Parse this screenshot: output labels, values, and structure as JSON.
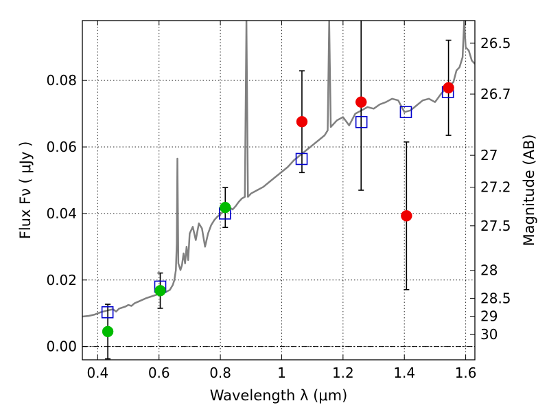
{
  "chart_data": {
    "type": "scatter",
    "title": "",
    "xlabel": "Wavelength  λ (μm)",
    "ylabel": "Flux  Fν  ( μJy )",
    "y2label": "Magnitude (AB)",
    "xlim": [
      0.35,
      1.63
    ],
    "ylim": [
      -0.004,
      0.098
    ],
    "grid": true,
    "x_ticks": [
      {
        "value": 0.4,
        "label": "0.4"
      },
      {
        "value": 0.6,
        "label": "0.6"
      },
      {
        "value": 0.8,
        "label": "0.8"
      },
      {
        "value": 1.0,
        "label": "1"
      },
      {
        "value": 1.2,
        "label": "1.2"
      },
      {
        "value": 1.4,
        "label": "1.4"
      },
      {
        "value": 1.6,
        "label": "1.6"
      }
    ],
    "y_ticks": [
      {
        "value": 0.0,
        "label": "0.00"
      },
      {
        "value": 0.02,
        "label": "0.02"
      },
      {
        "value": 0.04,
        "label": "0.04"
      },
      {
        "value": 0.06,
        "label": "0.06"
      },
      {
        "value": 0.08,
        "label": "0.08"
      }
    ],
    "y2_ticks": [
      {
        "label": "26.5",
        "flux": 0.0912
      },
      {
        "label": "26.7",
        "flux": 0.0759
      },
      {
        "label": "27",
        "flux": 0.0575
      },
      {
        "label": "27.2",
        "flux": 0.0479
      },
      {
        "label": "27.5",
        "flux": 0.0363
      },
      {
        "label": "28",
        "flux": 0.0229
      },
      {
        "label": "28.5",
        "flux": 0.0145
      },
      {
        "label": "29",
        "flux": 0.0091
      },
      {
        "label": "30",
        "flux": 0.0036
      }
    ],
    "colors": {
      "sed": "#808080",
      "model": "#0000cc",
      "optical": "#00bb00",
      "nir": "#ee0000",
      "error": "#000000",
      "refline": "#000000"
    },
    "series": [
      {
        "kind": "line",
        "points": [
          [
            0.35,
            0.009
          ],
          [
            0.37,
            0.0092
          ],
          [
            0.39,
            0.0096
          ],
          [
            0.41,
            0.0103
          ],
          [
            0.43,
            0.0108
          ],
          [
            0.45,
            0.0112
          ],
          [
            0.46,
            0.0105
          ],
          [
            0.47,
            0.0114
          ],
          [
            0.49,
            0.012
          ],
          [
            0.5,
            0.0125
          ],
          [
            0.51,
            0.0122
          ],
          [
            0.52,
            0.013
          ],
          [
            0.54,
            0.0138
          ],
          [
            0.56,
            0.0146
          ],
          [
            0.58,
            0.0152
          ],
          [
            0.6,
            0.0158
          ],
          [
            0.62,
            0.0163
          ],
          [
            0.635,
            0.017
          ],
          [
            0.645,
            0.0185
          ],
          [
            0.65,
            0.02
          ],
          [
            0.655,
            0.023
          ],
          [
            0.658,
            0.031
          ],
          [
            0.66,
            0.0565
          ],
          [
            0.663,
            0.025
          ],
          [
            0.67,
            0.023
          ],
          [
            0.675,
            0.0245
          ],
          [
            0.68,
            0.028
          ],
          [
            0.685,
            0.025
          ],
          [
            0.69,
            0.03
          ],
          [
            0.695,
            0.026
          ],
          [
            0.7,
            0.034
          ],
          [
            0.71,
            0.036
          ],
          [
            0.72,
            0.032
          ],
          [
            0.73,
            0.037
          ],
          [
            0.74,
            0.0355
          ],
          [
            0.75,
            0.03
          ],
          [
            0.76,
            0.034
          ],
          [
            0.77,
            0.0365
          ],
          [
            0.78,
            0.038
          ],
          [
            0.79,
            0.039
          ],
          [
            0.8,
            0.0398
          ],
          [
            0.81,
            0.0405
          ],
          [
            0.82,
            0.041
          ],
          [
            0.83,
            0.0418
          ],
          [
            0.84,
            0.0412
          ],
          [
            0.85,
            0.0422
          ],
          [
            0.86,
            0.0435
          ],
          [
            0.87,
            0.0445
          ],
          [
            0.88,
            0.045
          ],
          [
            0.885,
            0.098
          ],
          [
            0.89,
            0.045
          ],
          [
            0.9,
            0.046
          ],
          [
            0.92,
            0.047
          ],
          [
            0.94,
            0.048
          ],
          [
            0.96,
            0.0495
          ],
          [
            0.98,
            0.051
          ],
          [
            1.0,
            0.0525
          ],
          [
            1.02,
            0.054
          ],
          [
            1.04,
            0.056
          ],
          [
            1.06,
            0.0575
          ],
          [
            1.08,
            0.059
          ],
          [
            1.1,
            0.0605
          ],
          [
            1.12,
            0.062
          ],
          [
            1.14,
            0.0635
          ],
          [
            1.15,
            0.065
          ],
          [
            1.155,
            0.098
          ],
          [
            1.16,
            0.066
          ],
          [
            1.18,
            0.068
          ],
          [
            1.2,
            0.069
          ],
          [
            1.22,
            0.0665
          ],
          [
            1.24,
            0.07
          ],
          [
            1.26,
            0.071
          ],
          [
            1.28,
            0.072
          ],
          [
            1.3,
            0.0715
          ],
          [
            1.32,
            0.0728
          ],
          [
            1.34,
            0.0735
          ],
          [
            1.36,
            0.0745
          ],
          [
            1.38,
            0.074
          ],
          [
            1.4,
            0.0705
          ],
          [
            1.42,
            0.071
          ],
          [
            1.44,
            0.0725
          ],
          [
            1.46,
            0.074
          ],
          [
            1.48,
            0.0745
          ],
          [
            1.5,
            0.0735
          ],
          [
            1.52,
            0.076
          ],
          [
            1.54,
            0.078
          ],
          [
            1.56,
            0.0795
          ],
          [
            1.57,
            0.083
          ],
          [
            1.58,
            0.084
          ],
          [
            1.59,
            0.087
          ],
          [
            1.595,
            0.098
          ],
          [
            1.6,
            0.09
          ],
          [
            1.61,
            0.089
          ],
          [
            1.62,
            0.086
          ],
          [
            1.63,
            0.085
          ]
        ]
      },
      {
        "kind": "squares",
        "points": [
          [
            0.432,
            0.0103
          ],
          [
            0.604,
            0.018
          ],
          [
            0.815,
            0.04
          ],
          [
            1.065,
            0.0564
          ],
          [
            1.26,
            0.0675
          ],
          [
            1.405,
            0.0705
          ],
          [
            1.542,
            0.0765
          ]
        ]
      },
      {
        "kind": "points",
        "group": "optical",
        "points": [
          {
            "x": 0.433,
            "y": 0.0045,
            "err": 0.0082
          },
          {
            "x": 0.604,
            "y": 0.0168,
            "err": 0.0053
          },
          {
            "x": 0.816,
            "y": 0.0418,
            "err": 0.006
          }
        ]
      },
      {
        "kind": "points",
        "group": "nir",
        "points": [
          {
            "x": 1.066,
            "y": 0.0676,
            "err": 0.0153
          },
          {
            "x": 1.259,
            "y": 0.0735,
            "err": 0.0265
          },
          {
            "x": 1.407,
            "y": 0.0393,
            "err": 0.0222
          },
          {
            "x": 1.544,
            "y": 0.0778,
            "err": 0.0143
          }
        ]
      }
    ]
  }
}
